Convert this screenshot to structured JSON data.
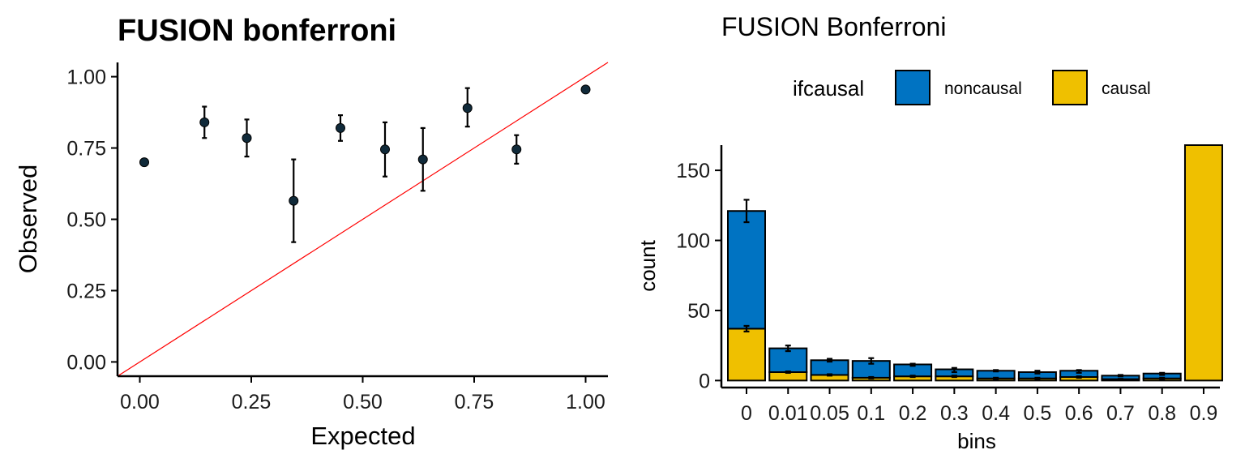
{
  "colors": {
    "point": "#102a3a",
    "diagonal": "#ff0000",
    "noncausal": "#0073c2",
    "causal": "#efc000",
    "outline": "#000000"
  },
  "chart_data": [
    {
      "type": "scatter",
      "title": "FUSION bonferroni",
      "xlabel": "Expected",
      "ylabel": "Observed",
      "xlim": [
        -0.05,
        1.05
      ],
      "ylim": [
        -0.05,
        1.05
      ],
      "x_ticks": [
        "0.00",
        "0.25",
        "0.50",
        "0.75",
        "1.00"
      ],
      "y_ticks": [
        "0.00",
        "0.25",
        "0.50",
        "0.75",
        "1.00"
      ],
      "reference_line": "y = x",
      "grid": false,
      "points": [
        {
          "x": 0.01,
          "y": 0.7,
          "ymin": 0.69,
          "ymax": 0.71
        },
        {
          "x": 0.145,
          "y": 0.84,
          "ymin": 0.785,
          "ymax": 0.895
        },
        {
          "x": 0.24,
          "y": 0.785,
          "ymin": 0.72,
          "ymax": 0.85
        },
        {
          "x": 0.345,
          "y": 0.565,
          "ymin": 0.42,
          "ymax": 0.71
        },
        {
          "x": 0.45,
          "y": 0.82,
          "ymin": 0.775,
          "ymax": 0.865
        },
        {
          "x": 0.55,
          "y": 0.745,
          "ymin": 0.65,
          "ymax": 0.84
        },
        {
          "x": 0.635,
          "y": 0.71,
          "ymin": 0.6,
          "ymax": 0.82
        },
        {
          "x": 0.735,
          "y": 0.89,
          "ymin": 0.825,
          "ymax": 0.96
        },
        {
          "x": 0.845,
          "y": 0.745,
          "ymin": 0.695,
          "ymax": 0.795
        },
        {
          "x": 1.0,
          "y": 0.955,
          "ymin": 0.955,
          "ymax": 0.955
        }
      ]
    },
    {
      "type": "bar",
      "stacked": true,
      "title": "FUSION Bonferroni",
      "xlabel": "bins",
      "ylabel": "count",
      "ylim": [
        -5,
        168
      ],
      "y_ticks": [
        0,
        50,
        100,
        150
      ],
      "legend": {
        "title": "ifcausal",
        "position": "top",
        "entries": [
          "noncausal",
          "causal"
        ]
      },
      "categories": [
        "0",
        "0.01",
        "0.05",
        "0.1",
        "0.2",
        "0.3",
        "0.4",
        "0.5",
        "0.6",
        "0.7",
        "0.8",
        "0.9"
      ],
      "series": [
        {
          "name": "causal",
          "values": [
            37,
            6,
            4,
            2,
            3,
            3,
            1.5,
            1.5,
            2.5,
            1,
            1.5,
            170
          ],
          "err_low": [
            35,
            5.5,
            3.5,
            1.5,
            2.5,
            2.5,
            1,
            1,
            2,
            0.8,
            1,
            null
          ],
          "err_high": [
            39,
            6.5,
            4.5,
            2.5,
            3.5,
            3.5,
            2,
            2,
            3,
            1.2,
            2,
            null
          ]
        },
        {
          "name": "noncausal",
          "values": [
            84,
            17,
            10.5,
            12,
            8.5,
            5,
            5.5,
            4.5,
            4.5,
            2.5,
            3.5,
            0
          ],
          "err_low": [
            113,
            21,
            13.5,
            12,
            10.5,
            6,
            6.5,
            5,
            5.5,
            3,
            4,
            null
          ],
          "err_high": [
            129,
            25,
            15.5,
            16,
            12,
            9,
            7.5,
            7,
            7.5,
            4,
            5.5,
            null
          ]
        }
      ]
    }
  ]
}
